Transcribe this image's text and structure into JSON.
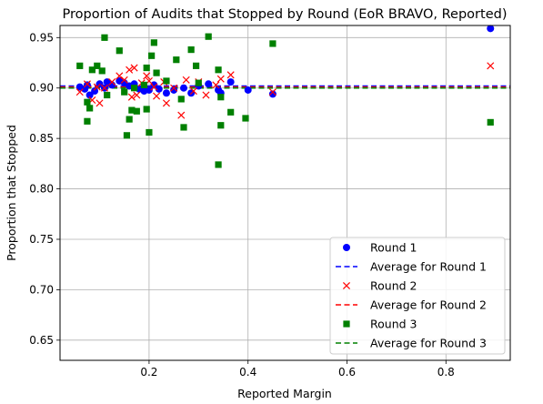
{
  "chart_data": {
    "type": "scatter",
    "title": "Proportion of Audits that Stopped by Round (EoR BRAVO, Reported)",
    "xlabel": "Reported Margin",
    "ylabel": "Proportion that Stopped",
    "xlim": [
      0.02,
      0.93
    ],
    "ylim": [
      0.63,
      0.962
    ],
    "xticks": [
      0.2,
      0.4,
      0.6,
      0.8
    ],
    "xtick_labels": [
      "0.2",
      "0.4",
      "0.6",
      "0.8"
    ],
    "yticks": [
      0.65,
      0.7,
      0.75,
      0.8,
      0.85,
      0.9,
      0.95
    ],
    "ytick_labels": [
      "0.65",
      "0.70",
      "0.75",
      "0.80",
      "0.85",
      "0.90",
      "0.95"
    ],
    "grid": true,
    "legend_position": "lower-right",
    "series": [
      {
        "name": "Round 1",
        "marker": "circle",
        "color": "#0000ff",
        "points": [
          [
            0.06,
            0.901
          ],
          [
            0.07,
            0.899
          ],
          [
            0.075,
            0.903
          ],
          [
            0.08,
            0.893
          ],
          [
            0.09,
            0.897
          ],
          [
            0.1,
            0.904
          ],
          [
            0.11,
            0.9
          ],
          [
            0.115,
            0.906
          ],
          [
            0.125,
            0.903
          ],
          [
            0.14,
            0.907
          ],
          [
            0.15,
            0.905
          ],
          [
            0.16,
            0.902
          ],
          [
            0.17,
            0.904
          ],
          [
            0.18,
            0.899
          ],
          [
            0.19,
            0.897
          ],
          [
            0.2,
            0.898
          ],
          [
            0.21,
            0.903
          ],
          [
            0.22,
            0.899
          ],
          [
            0.235,
            0.895
          ],
          [
            0.25,
            0.898
          ],
          [
            0.27,
            0.9
          ],
          [
            0.285,
            0.895
          ],
          [
            0.3,
            0.902
          ],
          [
            0.32,
            0.904
          ],
          [
            0.34,
            0.898
          ],
          [
            0.345,
            0.895
          ],
          [
            0.365,
            0.906
          ],
          [
            0.4,
            0.898
          ],
          [
            0.45,
            0.894
          ],
          [
            0.89,
            0.959
          ]
        ]
      },
      {
        "name": "Average for Round 1",
        "line": "dashed",
        "color": "#0000ff",
        "y": 0.902
      },
      {
        "name": "Round 2",
        "marker": "x",
        "color": "#ff0000",
        "points": [
          [
            0.06,
            0.896
          ],
          [
            0.075,
            0.904
          ],
          [
            0.085,
            0.888
          ],
          [
            0.095,
            0.901
          ],
          [
            0.1,
            0.885
          ],
          [
            0.11,
            0.9
          ],
          [
            0.125,
            0.906
          ],
          [
            0.14,
            0.912
          ],
          [
            0.15,
            0.908
          ],
          [
            0.16,
            0.918
          ],
          [
            0.165,
            0.891
          ],
          [
            0.17,
            0.92
          ],
          [
            0.175,
            0.893
          ],
          [
            0.185,
            0.905
          ],
          [
            0.195,
            0.912
          ],
          [
            0.2,
            0.907
          ],
          [
            0.21,
            0.901
          ],
          [
            0.215,
            0.892
          ],
          [
            0.23,
            0.906
          ],
          [
            0.235,
            0.885
          ],
          [
            0.25,
            0.9
          ],
          [
            0.265,
            0.873
          ],
          [
            0.275,
            0.908
          ],
          [
            0.29,
            0.897
          ],
          [
            0.3,
            0.906
          ],
          [
            0.315,
            0.893
          ],
          [
            0.335,
            0.903
          ],
          [
            0.345,
            0.909
          ],
          [
            0.365,
            0.913
          ],
          [
            0.45,
            0.896
          ],
          [
            0.89,
            0.922
          ]
        ]
      },
      {
        "name": "Average for Round 2",
        "line": "dashed",
        "color": "#ff0000",
        "y": 0.901
      },
      {
        "name": "Round 3",
        "marker": "square",
        "color": "#008000",
        "points": [
          [
            0.06,
            0.922
          ],
          [
            0.075,
            0.886
          ],
          [
            0.075,
            0.867
          ],
          [
            0.08,
            0.88
          ],
          [
            0.085,
            0.918
          ],
          [
            0.095,
            0.922
          ],
          [
            0.105,
            0.917
          ],
          [
            0.11,
            0.95
          ],
          [
            0.115,
            0.893
          ],
          [
            0.14,
            0.937
          ],
          [
            0.15,
            0.896
          ],
          [
            0.155,
            0.853
          ],
          [
            0.16,
            0.869
          ],
          [
            0.165,
            0.878
          ],
          [
            0.17,
            0.9
          ],
          [
            0.175,
            0.877
          ],
          [
            0.19,
            0.903
          ],
          [
            0.195,
            0.879
          ],
          [
            0.195,
            0.92
          ],
          [
            0.2,
            0.856
          ],
          [
            0.205,
            0.932
          ],
          [
            0.21,
            0.945
          ],
          [
            0.215,
            0.915
          ],
          [
            0.235,
            0.907
          ],
          [
            0.255,
            0.928
          ],
          [
            0.265,
            0.889
          ],
          [
            0.27,
            0.861
          ],
          [
            0.285,
            0.938
          ],
          [
            0.295,
            0.922
          ],
          [
            0.3,
            0.905
          ],
          [
            0.32,
            0.951
          ],
          [
            0.34,
            0.918
          ],
          [
            0.34,
            0.824
          ],
          [
            0.345,
            0.863
          ],
          [
            0.345,
            0.891
          ],
          [
            0.365,
            0.876
          ],
          [
            0.395,
            0.87
          ],
          [
            0.45,
            0.944
          ],
          [
            0.89,
            0.866
          ]
        ]
      },
      {
        "name": "Average for Round 3",
        "line": "dashed",
        "color": "#008000",
        "y": 0.9
      }
    ]
  }
}
